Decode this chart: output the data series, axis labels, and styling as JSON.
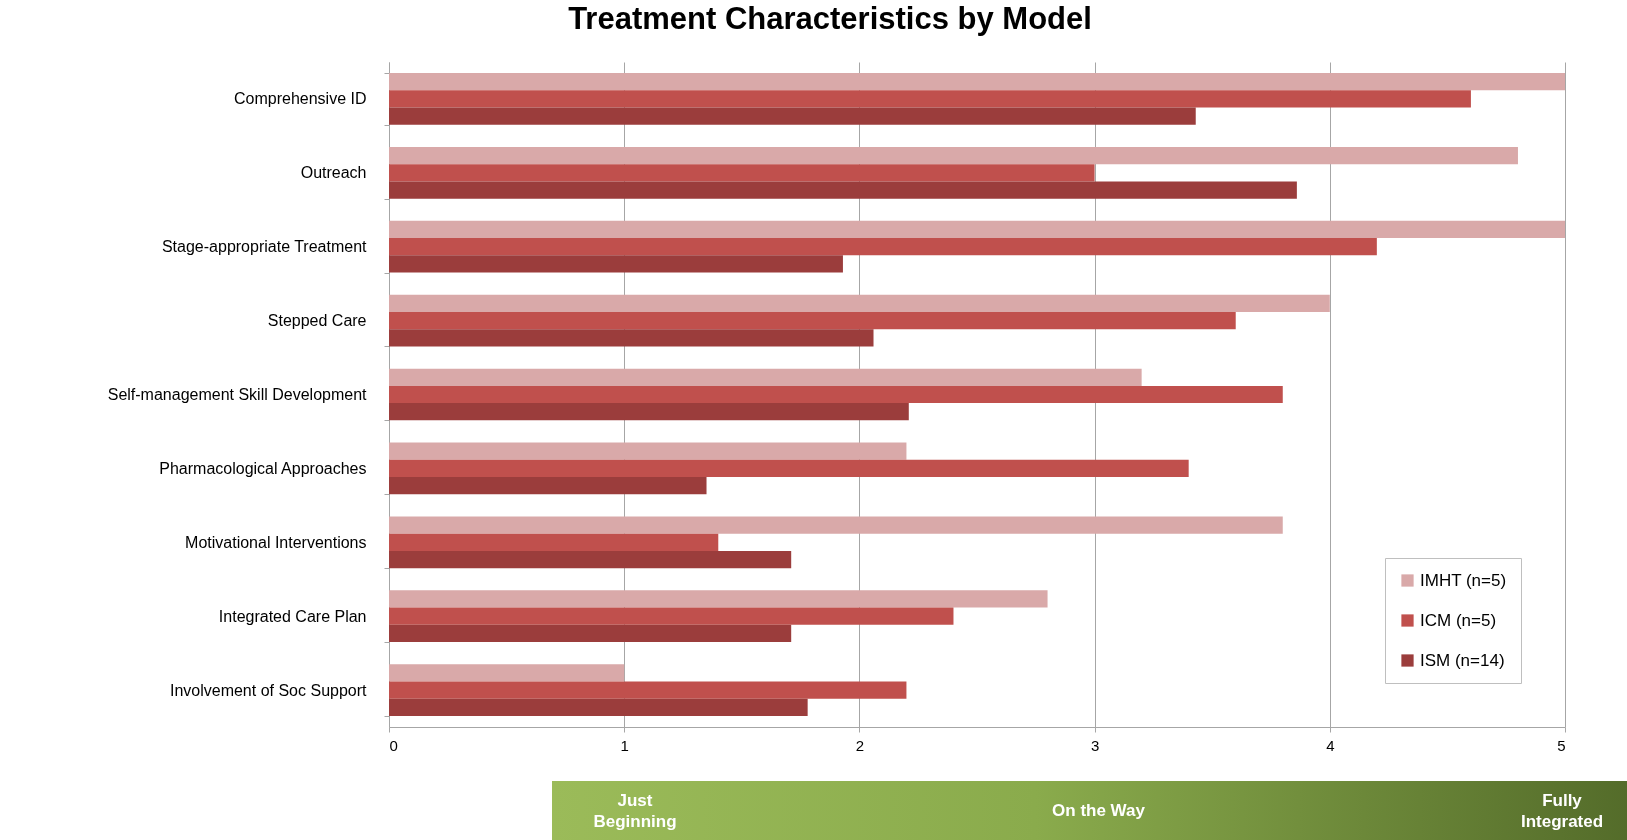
{
  "chart_data": {
    "type": "bar",
    "orientation": "horizontal",
    "title": "Treatment Characteristics by Model",
    "categories": [
      "Comprehensive ID",
      "Outreach",
      "Stage-appropriate Treatment",
      "Stepped Care",
      "Self-management Skill Development",
      "Pharmacological Approaches",
      "Motivational Interventions",
      "Integrated Care Plan",
      "Involvement of Soc Support"
    ],
    "series": [
      {
        "name": "IMHT (n=5)",
        "color": "#d9a9a9",
        "values": [
          5,
          4.8,
          5,
          4,
          3.2,
          2.2,
          3.8,
          2.8,
          1
        ]
      },
      {
        "name": "ICM (n=5)",
        "color": "#c0504d",
        "values": [
          4.6,
          3,
          4.2,
          3.6,
          3.8,
          3.4,
          1.4,
          2.4,
          2.2
        ]
      },
      {
        "name": "ISM (n=14)",
        "color": "#9b3d3c",
        "values": [
          3.43,
          3.86,
          1.93,
          2.06,
          2.21,
          1.35,
          1.71,
          1.71,
          1.78
        ]
      }
    ],
    "xlim": [
      0,
      5
    ],
    "xticks": [
      0,
      1,
      2,
      3,
      4,
      5
    ],
    "grid": "x",
    "legend": "bottom right",
    "annotations": [
      "Just Beginning",
      "On the Way",
      "Fully Integrated"
    ]
  }
}
